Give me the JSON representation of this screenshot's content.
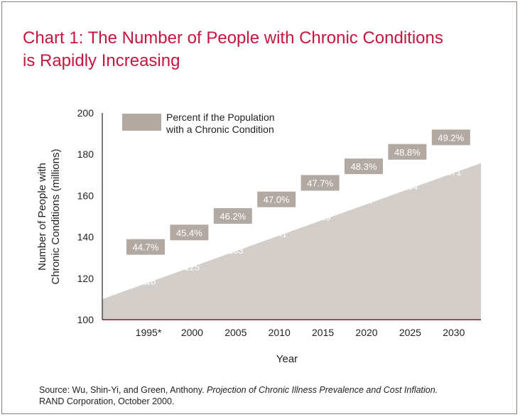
{
  "chart_data": {
    "type": "area",
    "title_line1": "Chart 1: The Number of People with Chronic Conditions",
    "title_line2": "is Rapidly Increasing",
    "xlabel": "Year",
    "ylabel_line1": "Number of People with",
    "ylabel_line2": "Chronic Conditions (millions)",
    "ylim": [
      100,
      200
    ],
    "yticks": [
      "100",
      "120",
      "140",
      "160",
      "180",
      "200"
    ],
    "categories": [
      "1995*",
      "2000",
      "2005",
      "2010",
      "2015",
      "2020",
      "2025",
      "2030"
    ],
    "values": [
      118,
      125,
      133,
      141,
      149,
      157,
      164,
      171
    ],
    "value_labels": [
      "118",
      "125",
      "133",
      "141",
      "149",
      "157",
      "164",
      "171"
    ],
    "percent_labels": [
      "44.7%",
      "45.4%",
      "46.2%",
      "47.0%",
      "47.7%",
      "48.3%",
      "48.8%",
      "49.2%"
    ],
    "legend_label_line1": "Percent if the Population",
    "legend_label_line2": "with a Chronic Condition",
    "legend_position": "top-left",
    "grid": false,
    "colors": {
      "area": "#d3cec9",
      "percent_box": "#b2a9a2",
      "title": "#c4163f",
      "axis": "#000000",
      "baseline": "#7a1a2e"
    }
  },
  "source": {
    "prefix": "Source: Wu, Shin-Yi, and Green, Anthony. ",
    "title": "Projection of Chronic Illness Prevalence and Cost Inflation.",
    "line2": "RAND Corporation, October 2000."
  }
}
